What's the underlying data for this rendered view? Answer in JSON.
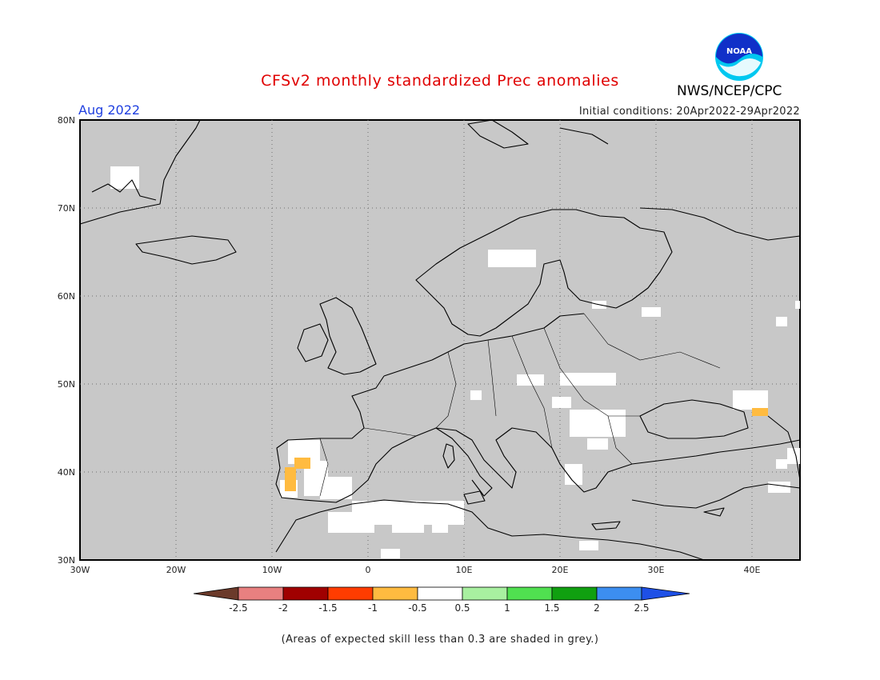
{
  "header": {
    "title": "CFSv2 monthly standardized Prec anomalies",
    "period": "Aug 2022",
    "initial_conditions": "Initial conditions: 20Apr2022-29Apr2022",
    "agency": "NWS/NCEP/CPC",
    "logo_text": "NOAA"
  },
  "map": {
    "background_color": "#c8c8c8",
    "lat_labels": [
      "80N",
      "70N",
      "60N",
      "50N",
      "40N",
      "30N"
    ],
    "lon_labels": [
      "30W",
      "20W",
      "10W",
      "0",
      "10E",
      "20E",
      "30E",
      "40E"
    ],
    "lat_range": [
      30,
      80
    ],
    "lon_range": [
      -30,
      45
    ]
  },
  "legend": {
    "colors": [
      "#6b3a2a",
      "#e88080",
      "#a00000",
      "#ff3c00",
      "#ffbb40",
      "#ffffff",
      "#a8f0a0",
      "#50e050",
      "#10a010",
      "#3c8ef0",
      "#1e50e6"
    ],
    "labels": [
      "-2.5",
      "-2",
      "-1.5",
      "-1",
      "-0.5",
      "0.5",
      "1",
      "1.5",
      "2",
      "2.5"
    ]
  },
  "footnote": "(Areas of expected skill less than 0.3 are shaded in grey.)"
}
